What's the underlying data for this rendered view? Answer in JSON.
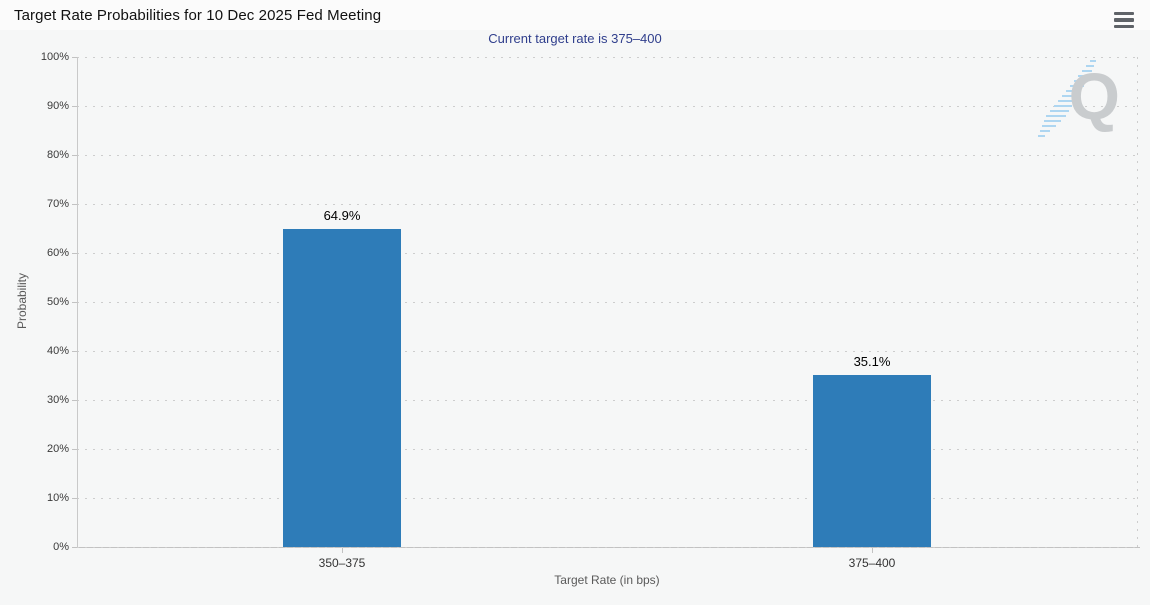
{
  "chart_data": {
    "type": "bar",
    "title": "Target Rate Probabilities for 10 Dec 2025 Fed Meeting",
    "subtitle": "Current target rate is 375–400",
    "categories": [
      "350–375",
      "375–400"
    ],
    "values": [
      64.9,
      35.1
    ],
    "value_labels": [
      "64.9%",
      "35.1%"
    ],
    "xlabel": "Target Rate (in bps)",
    "ylabel": "Probability",
    "ylim": [
      0,
      100
    ],
    "ytick_step": 10,
    "ytick_suffix": "%",
    "grid": "dotted horizontal, on",
    "legend": "none",
    "bar_color": "#2e7cb8",
    "subtitle_color": "#2f3e8c",
    "watermark_letter": "Q",
    "menu_icon": "hamburger-menu-icon"
  }
}
